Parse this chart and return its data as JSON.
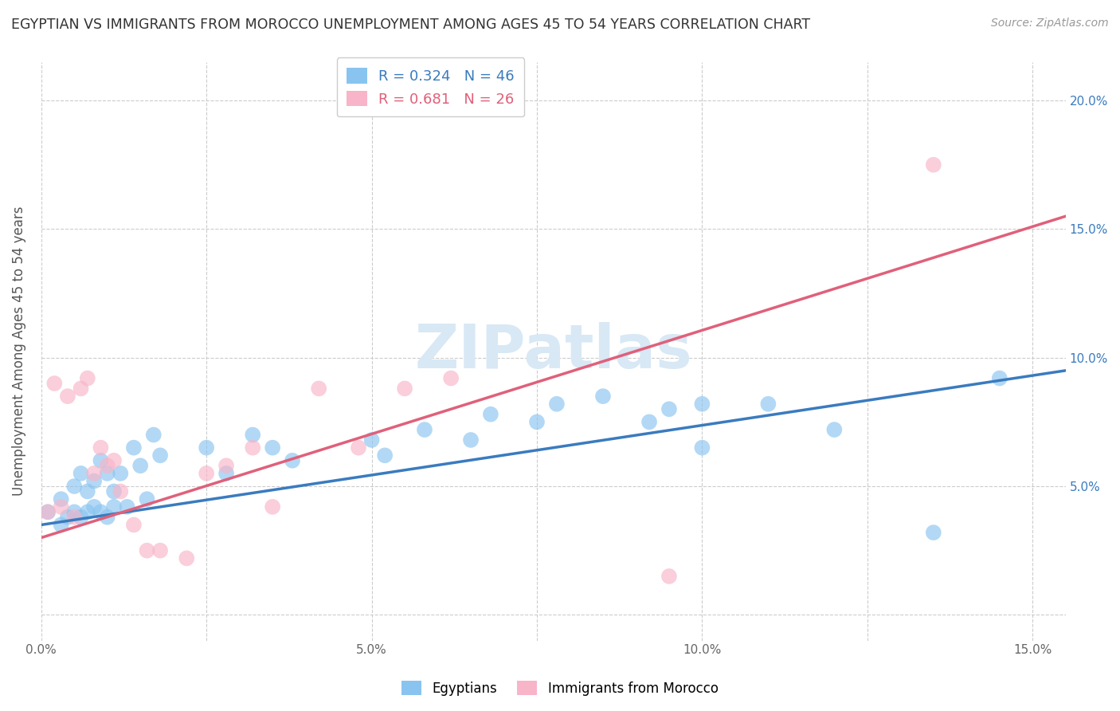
{
  "title": "EGYPTIAN VS IMMIGRANTS FROM MOROCCO UNEMPLOYMENT AMONG AGES 45 TO 54 YEARS CORRELATION CHART",
  "source": "Source: ZipAtlas.com",
  "ylabel": "Unemployment Among Ages 45 to 54 years",
  "xlim": [
    0.0,
    0.155
  ],
  "ylim": [
    -0.01,
    0.215
  ],
  "xticks": [
    0.0,
    0.025,
    0.05,
    0.075,
    0.1,
    0.125,
    0.15
  ],
  "xtick_labels": [
    "0.0%",
    "",
    "5.0%",
    "",
    "10.0%",
    "",
    "15.0%"
  ],
  "yticks": [
    0.0,
    0.05,
    0.1,
    0.15,
    0.2
  ],
  "ytick_labels": [
    "",
    "5.0%",
    "10.0%",
    "15.0%",
    "20.0%"
  ],
  "blue_color": "#89c4f0",
  "pink_color": "#f8b4c8",
  "blue_line_color": "#3a7bbf",
  "pink_line_color": "#e0607a",
  "legend_blue_label": "R = 0.324   N = 46",
  "legend_pink_label": "R = 0.681   N = 26",
  "legend_egyptians": "Egyptians",
  "legend_morocco": "Immigrants from Morocco",
  "watermark": "ZIPatlas",
  "background_color": "#ffffff",
  "grid_color": "#cccccc",
  "title_fontsize": 12.5,
  "source_fontsize": 10,
  "blue_line_x0": 0.0,
  "blue_line_y0": 0.035,
  "blue_line_x1": 0.155,
  "blue_line_y1": 0.095,
  "pink_line_x0": 0.0,
  "pink_line_y0": 0.03,
  "pink_line_x1": 0.155,
  "pink_line_y1": 0.155,
  "blue_scatter_x": [
    0.001,
    0.003,
    0.003,
    0.004,
    0.005,
    0.005,
    0.006,
    0.006,
    0.007,
    0.007,
    0.008,
    0.008,
    0.009,
    0.009,
    0.01,
    0.01,
    0.011,
    0.011,
    0.012,
    0.013,
    0.014,
    0.015,
    0.016,
    0.017,
    0.018,
    0.025,
    0.028,
    0.032,
    0.035,
    0.038,
    0.05,
    0.052,
    0.058,
    0.065,
    0.068,
    0.075,
    0.078,
    0.085,
    0.092,
    0.095,
    0.1,
    0.1,
    0.11,
    0.12,
    0.135,
    0.145
  ],
  "blue_scatter_y": [
    0.04,
    0.035,
    0.045,
    0.038,
    0.04,
    0.05,
    0.038,
    0.055,
    0.04,
    0.048,
    0.042,
    0.052,
    0.04,
    0.06,
    0.038,
    0.055,
    0.042,
    0.048,
    0.055,
    0.042,
    0.065,
    0.058,
    0.045,
    0.07,
    0.062,
    0.065,
    0.055,
    0.07,
    0.065,
    0.06,
    0.068,
    0.062,
    0.072,
    0.068,
    0.078,
    0.075,
    0.082,
    0.085,
    0.075,
    0.08,
    0.065,
    0.082,
    0.082,
    0.072,
    0.032,
    0.092
  ],
  "pink_scatter_x": [
    0.001,
    0.002,
    0.003,
    0.004,
    0.005,
    0.006,
    0.007,
    0.008,
    0.009,
    0.01,
    0.011,
    0.012,
    0.014,
    0.016,
    0.018,
    0.022,
    0.025,
    0.028,
    0.032,
    0.035,
    0.042,
    0.048,
    0.055,
    0.062,
    0.095,
    0.135
  ],
  "pink_scatter_y": [
    0.04,
    0.09,
    0.042,
    0.085,
    0.038,
    0.088,
    0.092,
    0.055,
    0.065,
    0.058,
    0.06,
    0.048,
    0.035,
    0.025,
    0.025,
    0.022,
    0.055,
    0.058,
    0.065,
    0.042,
    0.088,
    0.065,
    0.088,
    0.092,
    0.015,
    0.175
  ]
}
